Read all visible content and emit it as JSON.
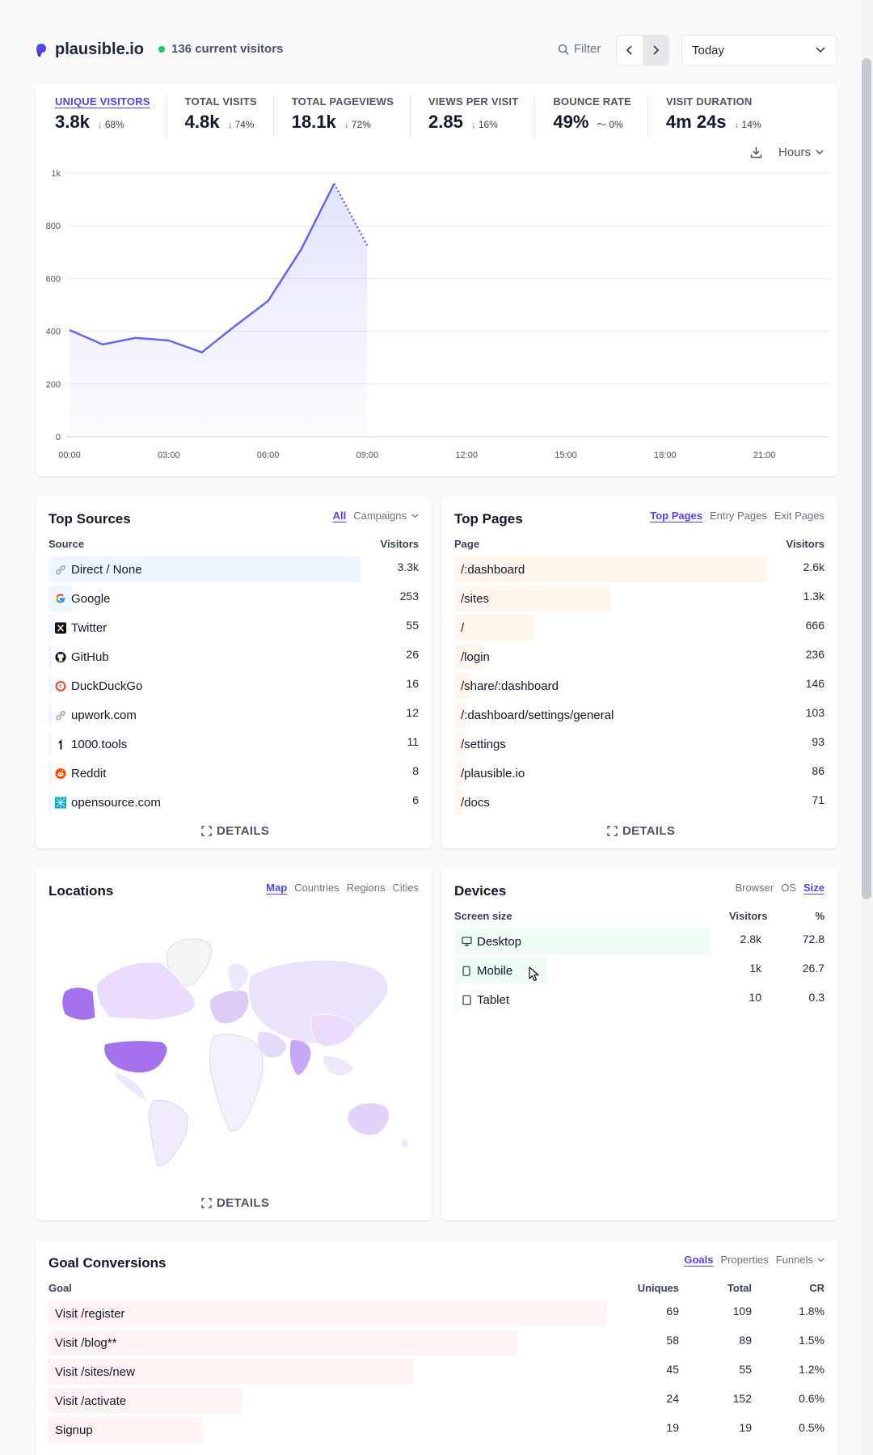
{
  "header": {
    "site_name": "plausible.io",
    "current_visitors": "136 current visitors",
    "filter_label": "Filter",
    "period": "Today"
  },
  "stats": [
    {
      "label": "UNIQUE VISITORS",
      "value": "3.8k",
      "arrow": "↓",
      "change": "68%",
      "active": true
    },
    {
      "label": "TOTAL VISITS",
      "value": "4.8k",
      "arrow": "↓",
      "change": "74%"
    },
    {
      "label": "TOTAL PAGEVIEWS",
      "value": "18.1k",
      "arrow": "↓",
      "change": "72%"
    },
    {
      "label": "VIEWS PER VISIT",
      "value": "2.85",
      "arrow": "↓",
      "change": "16%"
    },
    {
      "label": "BOUNCE RATE",
      "value": "49%",
      "arrow": "〜",
      "change": "0%"
    },
    {
      "label": "VISIT DURATION",
      "value": "4m 24s",
      "arrow": "↓",
      "change": "14%"
    }
  ],
  "chart_controls": {
    "interval": "Hours"
  },
  "chart_data": {
    "type": "line",
    "series_name": "Unique visitors",
    "x_ticks": [
      "00:00",
      "03:00",
      "06:00",
      "09:00",
      "12:00",
      "15:00",
      "18:00",
      "21:00"
    ],
    "y_ticks": [
      "0",
      "200",
      "400",
      "600",
      "800",
      "1k"
    ],
    "ylim": [
      0,
      1000
    ],
    "xlim": [
      0,
      23
    ],
    "x": [
      0,
      1,
      2,
      3,
      4,
      5,
      6,
      7,
      8,
      9
    ],
    "y": [
      405,
      350,
      375,
      365,
      320,
      420,
      515,
      710,
      960,
      725
    ],
    "incomplete_from_x": 8,
    "grid": true,
    "color": "#6366f1"
  },
  "top_sources": {
    "title": "Top Sources",
    "tabs": [
      "All",
      "Campaigns"
    ],
    "col_source": "Source",
    "col_visitors": "Visitors",
    "rows": [
      {
        "label": "Direct / None",
        "value": "3.3k",
        "pct": 1.0,
        "icon": "link-icon"
      },
      {
        "label": "Google",
        "value": "253",
        "pct": 0.077,
        "icon": "google-icon"
      },
      {
        "label": "Twitter",
        "value": "55",
        "pct": 0.017,
        "icon": "x-icon"
      },
      {
        "label": "GitHub",
        "value": "26",
        "pct": 0.008,
        "icon": "github-icon"
      },
      {
        "label": "DuckDuckGo",
        "value": "16",
        "pct": 0.005,
        "icon": "duckduckgo-icon"
      },
      {
        "label": "upwork.com",
        "value": "12",
        "pct": 0.004,
        "icon": "link-icon"
      },
      {
        "label": "1000.tools",
        "value": "11",
        "pct": 0.003,
        "icon": "1000tools-icon"
      },
      {
        "label": "Reddit",
        "value": "8",
        "pct": 0.002,
        "icon": "reddit-icon"
      },
      {
        "label": "opensource.com",
        "value": "6",
        "pct": 0.002,
        "icon": "opensource-icon"
      }
    ],
    "details": "DETAILS"
  },
  "top_pages": {
    "title": "Top Pages",
    "tabs": [
      "Top Pages",
      "Entry Pages",
      "Exit Pages"
    ],
    "col_page": "Page",
    "col_visitors": "Visitors",
    "rows": [
      {
        "label": "/:dashboard",
        "value": "2.6k",
        "pct": 1.0
      },
      {
        "label": "/sites",
        "value": "1.3k",
        "pct": 0.5
      },
      {
        "label": "/",
        "value": "666",
        "pct": 0.256
      },
      {
        "label": "/login",
        "value": "236",
        "pct": 0.09
      },
      {
        "label": "/share/:dashboard",
        "value": "146",
        "pct": 0.056
      },
      {
        "label": "/:dashboard/settings/general",
        "value": "103",
        "pct": 0.04
      },
      {
        "label": "/settings",
        "value": "93",
        "pct": 0.036
      },
      {
        "label": "/plausible.io",
        "value": "86",
        "pct": 0.033
      },
      {
        "label": "/docs",
        "value": "71",
        "pct": 0.027
      }
    ],
    "details": "DETAILS"
  },
  "locations": {
    "title": "Locations",
    "tabs": [
      "Map",
      "Countries",
      "Regions",
      "Cities"
    ],
    "details": "DETAILS"
  },
  "devices": {
    "title": "Devices",
    "tabs": [
      "Browser",
      "OS",
      "Size"
    ],
    "col_size": "Screen size",
    "col_visitors": "Visitors",
    "col_pct": "%",
    "rows": [
      {
        "label": "Desktop",
        "value": "2.8k",
        "pct_text": "72.8",
        "pct": 1.0,
        "icon": "desktop-icon"
      },
      {
        "label": "Mobile",
        "value": "1k",
        "pct_text": "26.7",
        "pct": 0.367,
        "icon": "mobile-icon"
      },
      {
        "label": "Tablet",
        "value": "10",
        "pct_text": "0.3",
        "pct": 0.004,
        "icon": "tablet-icon"
      }
    ]
  },
  "goals": {
    "title": "Goal Conversions",
    "tabs": [
      "Goals",
      "Properties",
      "Funnels"
    ],
    "col_goal": "Goal",
    "col_uniques": "Uniques",
    "col_total": "Total",
    "col_cr": "CR",
    "rows": [
      {
        "label": "Visit /register",
        "uniques": "69",
        "total": "109",
        "cr": "1.8%",
        "pct": 1.0
      },
      {
        "label": "Visit /blog**",
        "uniques": "58",
        "total": "89",
        "cr": "1.5%",
        "pct": 0.841
      },
      {
        "label": "Visit /sites/new",
        "uniques": "45",
        "total": "55",
        "cr": "1.2%",
        "pct": 0.652
      },
      {
        "label": "Visit /activate",
        "uniques": "24",
        "total": "152",
        "cr": "0.6%",
        "pct": 0.348
      },
      {
        "label": "Signup",
        "uniques": "19",
        "total": "19",
        "cr": "0.5%",
        "pct": 0.275
      }
    ]
  }
}
